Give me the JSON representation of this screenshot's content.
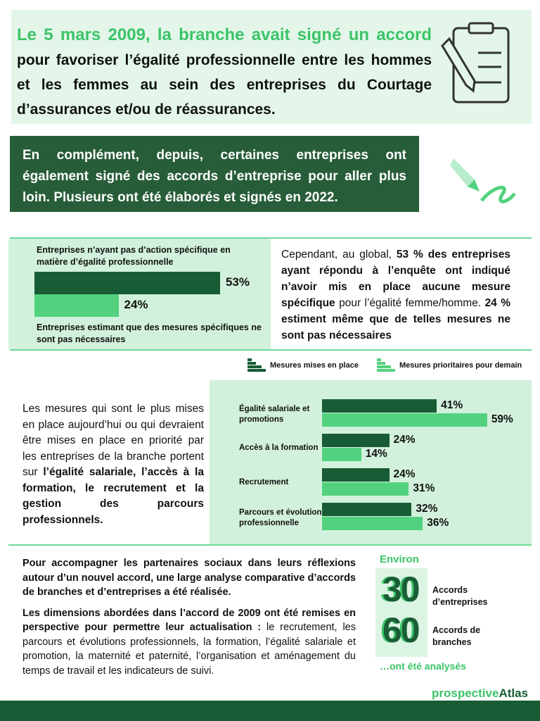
{
  "header": {
    "title_highlight_1": "Le 5 mars 2009, la branche avait signé un accord",
    "title_rest": " pour favoriser l’égalité professionnelle entre les hommes et les femmes au sein des entreprises du Courtage d’assurances et/ou de réassurances."
  },
  "complement": {
    "text": "En complément, depuis, certaines entreprises ont également signé des accords d’entreprise pour aller plus loin. Plusieurs ont été élaborés et signés en 2022."
  },
  "section2": {
    "label_top": "Entreprises n’ayant pas d’action spécifique en matière d’égalité professionnelle",
    "label_bottom": "Entreprises estimant que des mesures spécifiques ne sont pas nécessaires",
    "text_1": "Cependant, au global, ",
    "text_2": "53 % des entreprises ayant répondu à l’enquête ont indiqué n’avoir mis en place aucune mesure spécifique",
    "text_3": " pour l’égalité femme/homme. ",
    "text_4": "24 % estiment même que de telles mesures ne sont pas nécessaires"
  },
  "section3": {
    "legend": [
      "Mesures mises en place",
      "Mesures prioritaires pour demain"
    ],
    "text_1": "Les mesures qui sont le plus mises en place aujourd’hui ou qui devraient être mises en place en priorité par les entreprises de la branche portent sur ",
    "text_2": "l’égalité salariale, l’accès à la formation, le recrutement et la gestion des parcours professionnels."
  },
  "chart_data": [
    {
      "type": "bar",
      "orientation": "horizontal",
      "categories": [
        "Entreprises n’ayant pas d’action spécifique en matière d’égalité professionnelle",
        "Entreprises estimant que des mesures spécifiques ne sont pas nécessaires"
      ],
      "values": [
        53,
        24
      ],
      "labels": [
        "53%",
        "24%"
      ],
      "unit": "%"
    },
    {
      "type": "bar",
      "orientation": "horizontal",
      "categories": [
        "Égalité salariale et promotions",
        "Accès à la formation",
        "Recrutement",
        "Parcours et évolution professionnelle"
      ],
      "series": [
        {
          "name": "Mesures mises en place",
          "values": [
            41,
            24,
            24,
            32
          ],
          "labels": [
            "41%",
            "24%",
            "24%",
            "32%"
          ]
        },
        {
          "name": "Mesures prioritaires pour demain",
          "values": [
            59,
            14,
            31,
            36
          ],
          "labels": [
            "59%",
            "14%",
            "31%",
            "36%"
          ]
        }
      ],
      "unit": "%",
      "legend": "top-right"
    }
  ],
  "section4": {
    "p1": "Pour accompagner les partenaires sociaux dans leurs réflexions autour d’un nouvel accord, une large analyse comparative d’accords de branches et d’entreprises a été réalisée.",
    "p2_bold": "Les dimensions abordées dans l’accord de 2009 ont été remises en perspective pour permettre leur actualisation :",
    "p2_rest": " le recrutement, les parcours et évolutions professionnels, la formation, l’égalité salariale et promotion, la maternité et paternité, l’organisation et aménagement du temps de travail et les indicateurs de suivi.",
    "environ": "Environ",
    "n1": "30",
    "n1_label": "Accords d’entreprises",
    "n2": "60",
    "n2_label": "Accords de branches",
    "analysed": "…ont été analysés"
  },
  "logo": {
    "text_1": "prospective",
    "text_2": "Atlas"
  },
  "colors": {
    "dark_green": "#175c34",
    "light_green": "#52d27e",
    "accent": "#3cc469",
    "pale": "#d2f1dc"
  }
}
